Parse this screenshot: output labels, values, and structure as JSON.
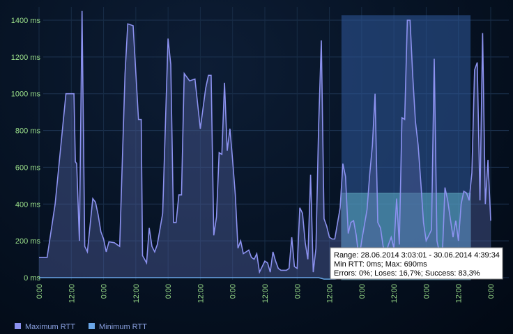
{
  "chart_data": {
    "type": "area",
    "ylim": [
      0,
      1450
    ],
    "y_ticks": [
      {
        "value": 0,
        "label": "0 ms"
      },
      {
        "value": 200,
        "label": "200 ms"
      },
      {
        "value": 400,
        "label": "400 ms"
      },
      {
        "value": 600,
        "label": "600 ms"
      },
      {
        "value": 800,
        "label": "800 ms"
      },
      {
        "value": 1000,
        "label": "1000 ms"
      },
      {
        "value": 1200,
        "label": "1200 ms"
      },
      {
        "value": 1400,
        "label": "1400 ms"
      }
    ],
    "x_range_hours": [
      0,
      168
    ],
    "x_ticks": [
      {
        "value": 0,
        "label": "0:00"
      },
      {
        "value": 12,
        "label": "12:00"
      },
      {
        "value": 24,
        "label": "0:00"
      },
      {
        "value": 36,
        "label": "12:00"
      },
      {
        "value": 48,
        "label": "0:00"
      },
      {
        "value": 60,
        "label": "12:00"
      },
      {
        "value": 72,
        "label": "0:00"
      },
      {
        "value": 84,
        "label": "12:00"
      },
      {
        "value": 96,
        "label": "0:00"
      },
      {
        "value": 108,
        "label": "12:00"
      },
      {
        "value": 120,
        "label": "0:00"
      },
      {
        "value": 132,
        "label": "12:00"
      },
      {
        "value": 144,
        "label": "0:00"
      },
      {
        "value": 156,
        "label": "12:00"
      },
      {
        "value": 168,
        "label": "0:00"
      }
    ],
    "grid": true,
    "legend_position": "bottom-left",
    "series": [
      {
        "name": "Maximum RTT",
        "color": "#8c92f0",
        "points": [
          [
            0,
            110
          ],
          [
            3,
            110
          ],
          [
            6,
            400
          ],
          [
            10,
            1000
          ],
          [
            13,
            1000
          ],
          [
            13.5,
            630
          ],
          [
            14,
            620
          ],
          [
            15,
            200
          ],
          [
            16,
            1450
          ],
          [
            17,
            170
          ],
          [
            18,
            140
          ],
          [
            20,
            430
          ],
          [
            21,
            410
          ],
          [
            22,
            340
          ],
          [
            23,
            250
          ],
          [
            24,
            210
          ],
          [
            25,
            140
          ],
          [
            26,
            195
          ],
          [
            28,
            190
          ],
          [
            30,
            170
          ],
          [
            32,
            1110
          ],
          [
            33,
            1380
          ],
          [
            35,
            1370
          ],
          [
            37,
            860
          ],
          [
            38,
            860
          ],
          [
            38.5,
            120
          ],
          [
            40,
            80
          ],
          [
            41,
            270
          ],
          [
            42,
            170
          ],
          [
            43,
            140
          ],
          [
            44,
            180
          ],
          [
            46,
            350
          ],
          [
            48,
            1300
          ],
          [
            49,
            1160
          ],
          [
            50,
            300
          ],
          [
            51,
            300
          ],
          [
            52,
            450
          ],
          [
            53,
            450
          ],
          [
            54,
            1110
          ],
          [
            56,
            1070
          ],
          [
            58,
            1080
          ],
          [
            60,
            810
          ],
          [
            62,
            1030
          ],
          [
            63,
            1100
          ],
          [
            64,
            1100
          ],
          [
            65,
            230
          ],
          [
            66,
            330
          ],
          [
            67,
            680
          ],
          [
            68,
            670
          ],
          [
            69,
            1060
          ],
          [
            70,
            690
          ],
          [
            71,
            810
          ],
          [
            72,
            640
          ],
          [
            73,
            450
          ],
          [
            74,
            160
          ],
          [
            75,
            200
          ],
          [
            76,
            130
          ],
          [
            77,
            140
          ],
          [
            78,
            150
          ],
          [
            79,
            110
          ],
          [
            80,
            100
          ],
          [
            81,
            130
          ],
          [
            82,
            30
          ],
          [
            84,
            90
          ],
          [
            85,
            80
          ],
          [
            86,
            30
          ],
          [
            87,
            140
          ],
          [
            88,
            90
          ],
          [
            89,
            50
          ],
          [
            90,
            40
          ],
          [
            91,
            40
          ],
          [
            92,
            40
          ],
          [
            93,
            50
          ],
          [
            94,
            220
          ],
          [
            95,
            60
          ],
          [
            96,
            50
          ],
          [
            97,
            380
          ],
          [
            98,
            350
          ],
          [
            99,
            190
          ],
          [
            100,
            100
          ],
          [
            101,
            560
          ],
          [
            102,
            30
          ],
          [
            103,
            160
          ],
          [
            104,
            820
          ],
          [
            105,
            1290
          ],
          [
            106,
            320
          ],
          [
            107,
            280
          ],
          [
            108,
            220
          ],
          [
            109,
            210
          ],
          [
            110,
            210
          ],
          [
            112,
            380
          ],
          [
            113,
            620
          ],
          [
            114,
            550
          ],
          [
            115,
            240
          ],
          [
            116,
            300
          ],
          [
            117,
            310
          ],
          [
            118,
            230
          ],
          [
            119,
            100
          ],
          [
            120,
            200
          ],
          [
            122,
            370
          ],
          [
            123,
            560
          ],
          [
            124,
            720
          ],
          [
            125,
            1000
          ],
          [
            126,
            300
          ],
          [
            127,
            270
          ],
          [
            128,
            170
          ],
          [
            129,
            130
          ],
          [
            130,
            180
          ],
          [
            131,
            220
          ],
          [
            132,
            160
          ],
          [
            133,
            430
          ],
          [
            134,
            180
          ],
          [
            135,
            870
          ],
          [
            136,
            860
          ],
          [
            137,
            1400
          ],
          [
            138,
            1400
          ],
          [
            139,
            1100
          ],
          [
            140,
            850
          ],
          [
            141,
            720
          ],
          [
            142,
            520
          ],
          [
            143,
            300
          ],
          [
            144,
            200
          ],
          [
            145,
            230
          ],
          [
            146,
            260
          ],
          [
            147,
            1190
          ],
          [
            148,
            200
          ],
          [
            149,
            130
          ],
          [
            150,
            120
          ],
          [
            151,
            490
          ],
          [
            152,
            420
          ],
          [
            153,
            320
          ],
          [
            154,
            220
          ],
          [
            155,
            310
          ],
          [
            156,
            200
          ],
          [
            157,
            400
          ],
          [
            158,
            470
          ],
          [
            159,
            460
          ],
          [
            160,
            420
          ],
          [
            161,
            570
          ],
          [
            162,
            1130
          ],
          [
            163,
            1170
          ],
          [
            164,
            420
          ],
          [
            165,
            1330
          ],
          [
            166,
            400
          ],
          [
            167,
            640
          ],
          [
            168,
            310
          ]
        ]
      },
      {
        "name": "Minimum RTT",
        "color": "#6aa6e8",
        "points": [
          [
            0,
            0
          ],
          [
            20,
            0
          ],
          [
            40,
            0
          ],
          [
            60,
            0
          ],
          [
            80,
            0
          ],
          [
            96,
            0
          ],
          [
            100,
            0
          ],
          [
            104,
            0
          ],
          [
            106,
            -8
          ],
          [
            110,
            -8
          ],
          [
            112,
            -4
          ],
          [
            114,
            0
          ],
          [
            118,
            0
          ],
          [
            125,
            0
          ],
          [
            130,
            0
          ],
          [
            140,
            0
          ],
          [
            150,
            0
          ],
          [
            160,
            0
          ],
          [
            168,
            0
          ]
        ]
      }
    ],
    "selection": {
      "x_start": 112.5,
      "x_end": 160.5,
      "y_avg": 460
    },
    "tooltip": {
      "line1": "Range: 28.06.2014 3:03:01 - 30.06.2014 4:39:34",
      "line2": "Min RTT: 0ms; Max: 690ms",
      "line3": "Errors: 0%; Loses: 16,7%; Success: 83,3%"
    }
  },
  "legend": {
    "items": [
      {
        "label": "Maximum RTT",
        "color": "#8c92f0"
      },
      {
        "label": "Minimum RTT",
        "color": "#6aa6e8"
      }
    ]
  }
}
